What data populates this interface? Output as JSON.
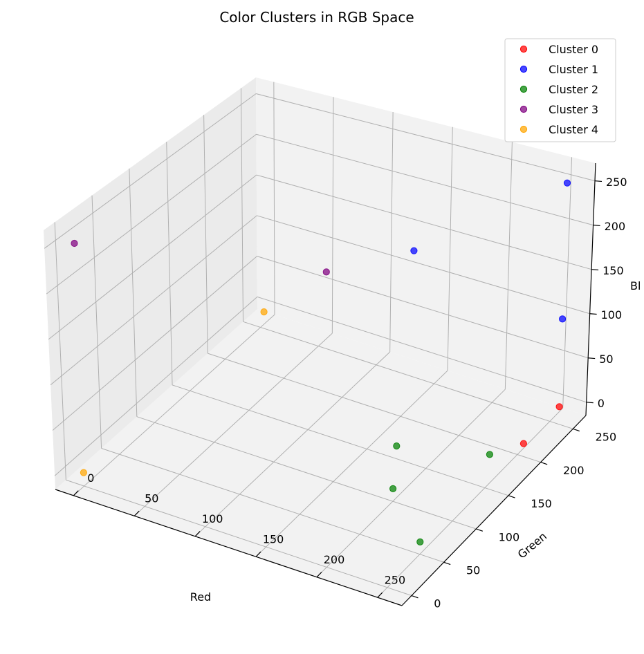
{
  "chart_data": {
    "type": "scatter",
    "title": "Color Clusters in RGB Space",
    "xlabel": "Red",
    "ylabel": "Green",
    "zlabel": "Bl",
    "xlim": [
      -15,
      270
    ],
    "ylim": [
      -15,
      270
    ],
    "zlim": [
      -15,
      270
    ],
    "x_ticks": [
      "0",
      "50",
      "100",
      "150",
      "200",
      "250"
    ],
    "y_ticks": [
      "0",
      "50",
      "100",
      "150",
      "200",
      "250"
    ],
    "z_ticks": [
      "0",
      "50",
      "100",
      "150",
      "200",
      "250"
    ],
    "grid": true,
    "legend_position": "top-right",
    "series": [
      {
        "name": "Cluster 0",
        "color": "#ff0000",
        "points": [
          [
            255,
            255,
            0
          ],
          [
            255,
            200,
            0
          ]
        ]
      },
      {
        "name": "Cluster 1",
        "color": "#0000ff",
        "points": [
          [
            255,
            255,
            255
          ],
          [
            128,
            255,
            128
          ],
          [
            255,
            255,
            100
          ]
        ]
      },
      {
        "name": "Cluster 2",
        "color": "#008000",
        "points": [
          [
            200,
            100,
            0
          ],
          [
            250,
            50,
            0
          ],
          [
            175,
            150,
            0
          ],
          [
            240,
            175,
            0
          ]
        ]
      },
      {
        "name": "Cluster 3",
        "color": "#800080",
        "points": [
          [
            0,
            0,
            255
          ],
          [
            128,
            128,
            200
          ]
        ]
      },
      {
        "name": "Cluster 4",
        "color": "#ffa500",
        "points": [
          [
            0,
            0,
            0
          ],
          [
            0,
            255,
            0
          ]
        ]
      }
    ]
  }
}
